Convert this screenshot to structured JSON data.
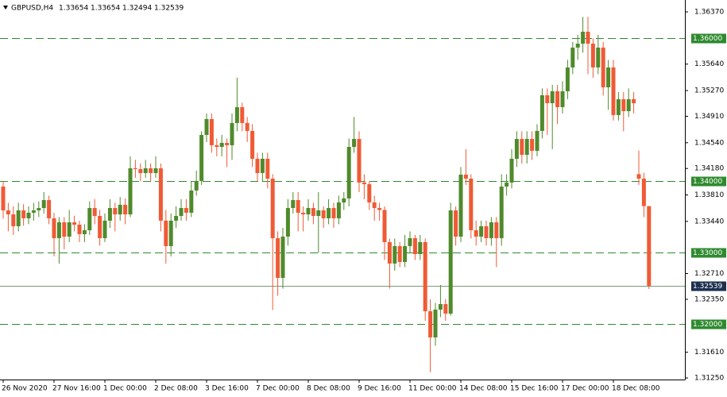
{
  "chart_data": {
    "type": "candlestick",
    "info": {
      "symbol": "GBPUSD,H4",
      "ohlc": [
        1.33654,
        1.33654,
        1.32494,
        1.32539
      ]
    },
    "categories": [
      "26 Nov 2020",
      null,
      null,
      null,
      null,
      null,
      null,
      null,
      null,
      null,
      "27 Nov 16:00",
      null,
      null,
      null,
      null,
      null,
      null,
      null,
      null,
      null,
      "1 Dec 00:00",
      null,
      null,
      null,
      null,
      null,
      null,
      null,
      null,
      null,
      "2 Dec 08:00",
      null,
      null,
      null,
      null,
      null,
      null,
      null,
      null,
      null,
      "3 Dec 16:00",
      null,
      null,
      null,
      null,
      null,
      null,
      null,
      null,
      null,
      "7 Dec 00:00",
      null,
      null,
      null,
      null,
      null,
      null,
      null,
      null,
      null,
      "8 Dec 08:00",
      null,
      null,
      null,
      null,
      null,
      null,
      null,
      null,
      null,
      "9 Dec 16:00",
      null,
      null,
      null,
      null,
      null,
      null,
      null,
      null,
      null,
      "11 Dec 00:00",
      null,
      null,
      null,
      null,
      null,
      null,
      null,
      null,
      null,
      "14 Dec 08:00",
      null,
      null,
      null,
      null,
      null,
      null,
      null,
      null,
      null,
      "15 Dec 16:00",
      null,
      null,
      null,
      null,
      null,
      null,
      null,
      null,
      null,
      "17 Dec 00:00",
      null,
      null,
      null,
      null,
      null,
      null,
      null,
      null,
      null,
      "18 Dec 08:00",
      null,
      null,
      null,
      null,
      null,
      null,
      null
    ],
    "open": [
      1.33927,
      1.33594,
      1.33538,
      1.33372,
      1.33594,
      1.33483,
      1.33561,
      1.33594,
      1.33627,
      1.33738,
      1.33483,
      1.33205,
      1.33427,
      1.33227,
      1.33427,
      1.33394,
      1.33261,
      1.33316,
      1.33627,
      1.33516,
      1.33205,
      1.3345,
      1.33627,
      1.33538,
      1.33672,
      1.33538,
      1.34183,
      1.34171,
      1.34116,
      1.34183,
      1.34116,
      1.34183,
      1.3345,
      1.33094,
      1.3345,
      1.33516,
      1.33627,
      1.33561,
      1.33872,
      1.34005,
      1.34649,
      1.34871,
      1.34505,
      1.34482,
      1.34538,
      1.34505,
      1.34816,
      1.35038,
      1.34816,
      1.34705,
      1.34316,
      1.34116,
      1.34316,
      1.34038,
      1.33205,
      1.3265,
      1.33227,
      1.33627,
      1.33738,
      1.33561,
      1.33538,
      1.33627,
      1.33516,
      1.33594,
      1.33483,
      1.33627,
      1.33483,
      1.33705,
      1.33761,
      1.34482,
      1.34593,
      1.33983,
      1.3396,
      1.33705,
      1.33627,
      1.336,
      1.3315,
      1.3285,
      1.33094,
      1.32872,
      1.33094,
      1.33205,
      1.32983,
      1.3315,
      1.32183,
      1.31817,
      1.32206,
      1.32283,
      1.3215,
      1.33594,
      1.33227,
      1.34094,
      1.34038,
      1.33316,
      1.33227,
      1.33372,
      1.33205,
      1.33427,
      1.33205,
      1.33927,
      1.33983,
      1.34316,
      1.34593,
      1.34371,
      1.34593,
      1.34427,
      1.34705,
      1.35204,
      1.35093,
      1.3526,
      1.35038,
      1.3526,
      1.35593,
      1.35871,
      1.35926,
      1.36093,
      1.35926,
      1.35593,
      1.35871,
      1.35315,
      1.35593,
      1.34927,
      1.35149,
      1.34982,
      1.35149,
      1.341,
      1.34038,
      1.33654
    ],
    "high": [
      1.34,
      1.337,
      1.3365,
      1.337,
      1.3368,
      1.3365,
      1.337,
      1.3372,
      1.3385,
      1.338,
      1.3356,
      1.335,
      1.335,
      1.336,
      1.3352,
      1.3345,
      1.334,
      1.3372,
      1.3375,
      1.336,
      1.3355,
      1.3375,
      1.337,
      1.3378,
      1.3376,
      1.3435,
      1.343,
      1.3425,
      1.343,
      1.3425,
      1.3435,
      1.3425,
      1.336,
      1.3355,
      1.3365,
      1.3375,
      1.3375,
      1.34,
      1.3415,
      1.347,
      1.3495,
      1.3495,
      1.346,
      1.3465,
      1.346,
      1.3495,
      1.3545,
      1.351,
      1.349,
      1.348,
      1.344,
      1.344,
      1.344,
      1.341,
      1.333,
      1.3335,
      1.3375,
      1.3385,
      1.3385,
      1.3365,
      1.3375,
      1.337,
      1.3385,
      1.3365,
      1.3375,
      1.337,
      1.338,
      1.3385,
      1.346,
      1.349,
      1.347,
      1.341,
      1.34,
      1.338,
      1.337,
      1.3365,
      1.332,
      1.332,
      1.3315,
      1.3325,
      1.333,
      1.3325,
      1.3325,
      1.332,
      1.3235,
      1.323,
      1.3255,
      1.3235,
      1.337,
      1.3365,
      1.342,
      1.3445,
      1.341,
      1.3345,
      1.3345,
      1.3345,
      1.335,
      1.335,
      1.341,
      1.341,
      1.3445,
      1.347,
      1.347,
      1.347,
      1.347,
      1.348,
      1.353,
      1.353,
      1.3535,
      1.3535,
      1.354,
      1.357,
      1.3595,
      1.3605,
      1.363,
      1.363,
      1.36,
      1.3605,
      1.3595,
      1.357,
      1.357,
      1.3525,
      1.3525,
      1.353,
      1.3525,
      1.3443,
      1.3412,
      1.33654
    ],
    "low": [
      1.3348,
      1.333,
      1.3325,
      1.333,
      1.3338,
      1.334,
      1.3345,
      1.335,
      1.3355,
      1.334,
      1.3295,
      1.3285,
      1.3305,
      1.3315,
      1.333,
      1.3315,
      1.3315,
      1.3325,
      1.334,
      1.331,
      1.3315,
      1.3335,
      1.333,
      1.3345,
      1.334,
      1.335,
      1.3405,
      1.34,
      1.3405,
      1.34,
      1.3405,
      1.333,
      1.3285,
      1.3295,
      1.3335,
      1.3345,
      1.3345,
      1.335,
      1.338,
      1.3395,
      1.3455,
      1.344,
      1.3435,
      1.3435,
      1.342,
      1.343,
      1.347,
      1.347,
      1.3455,
      1.342,
      1.34,
      1.34,
      1.339,
      1.322,
      1.324,
      1.325,
      1.331,
      1.3355,
      1.333,
      1.333,
      1.3345,
      1.334,
      1.33,
      1.3335,
      1.334,
      1.3335,
      1.334,
      1.336,
      1.3365,
      1.344,
      1.3385,
      1.3375,
      1.336,
      1.3345,
      1.3345,
      1.329,
      1.325,
      1.3275,
      1.328,
      1.328,
      1.33,
      1.329,
      1.329,
      1.3205,
      1.3133,
      1.317,
      1.321,
      1.3205,
      1.3212,
      1.331,
      1.3315,
      1.3395,
      1.332,
      1.331,
      1.3315,
      1.331,
      1.331,
      1.328,
      1.331,
      1.338,
      1.339,
      1.342,
      1.3425,
      1.3425,
      1.343,
      1.3435,
      1.346,
      1.3465,
      1.3445,
      1.348,
      1.3495,
      1.3515,
      1.355,
      1.357,
      1.358,
      1.355,
      1.3545,
      1.355,
      1.352,
      1.35,
      1.3485,
      1.3485,
      1.347,
      1.349,
      1.3495,
      1.3395,
      1.335,
      1.32494
    ],
    "close": [
      1.33594,
      1.33538,
      1.33372,
      1.33594,
      1.33483,
      1.33561,
      1.33594,
      1.33627,
      1.33738,
      1.33483,
      1.33205,
      1.33427,
      1.33227,
      1.33427,
      1.33394,
      1.33261,
      1.33316,
      1.33627,
      1.33516,
      1.33205,
      1.3345,
      1.33627,
      1.33538,
      1.33672,
      1.33538,
      1.34183,
      1.34171,
      1.34116,
      1.34183,
      1.34116,
      1.34183,
      1.3345,
      1.33094,
      1.3345,
      1.33516,
      1.33627,
      1.33561,
      1.33872,
      1.34005,
      1.34649,
      1.34871,
      1.34505,
      1.34482,
      1.34538,
      1.34505,
      1.34816,
      1.35038,
      1.34816,
      1.34705,
      1.34316,
      1.34116,
      1.34316,
      1.34038,
      1.33205,
      1.3265,
      1.33227,
      1.33627,
      1.33738,
      1.33561,
      1.33538,
      1.33627,
      1.33516,
      1.33594,
      1.33483,
      1.33627,
      1.33483,
      1.33705,
      1.33761,
      1.34482,
      1.34593,
      1.33983,
      1.3396,
      1.33705,
      1.33627,
      1.336,
      1.3315,
      1.3285,
      1.33094,
      1.32872,
      1.33094,
      1.33205,
      1.32983,
      1.3315,
      1.32183,
      1.31817,
      1.32206,
      1.32283,
      1.3215,
      1.33594,
      1.33227,
      1.34094,
      1.34038,
      1.33316,
      1.33227,
      1.33372,
      1.33205,
      1.33427,
      1.33205,
      1.33927,
      1.33983,
      1.34316,
      1.34593,
      1.34371,
      1.34593,
      1.34427,
      1.34705,
      1.35204,
      1.35093,
      1.3526,
      1.35038,
      1.3526,
      1.35593,
      1.35871,
      1.35926,
      1.36093,
      1.35926,
      1.35593,
      1.35871,
      1.35315,
      1.35593,
      1.34927,
      1.35149,
      1.34982,
      1.35149,
      1.35093,
      1.34038,
      1.33654,
      1.32539
    ],
    "up_color": "#4f8a2b",
    "down_color": "#ef5a35",
    "ylim": [
      1.3125,
      1.3637
    ],
    "yticks": [
      {
        "value": 1.3637,
        "label": "1.36370"
      },
      {
        "value": 1.3564,
        "label": "1.35640"
      },
      {
        "value": 1.3527,
        "label": "1.35270"
      },
      {
        "value": 1.3491,
        "label": "1.34910"
      },
      {
        "value": 1.3454,
        "label": "1.34540"
      },
      {
        "value": 1.3418,
        "label": "1.34180"
      },
      {
        "value": 1.3381,
        "label": "1.33810"
      },
      {
        "value": 1.3344,
        "label": "1.33440"
      },
      {
        "value": 1.3271,
        "label": "1.32710"
      },
      {
        "value": 1.3235,
        "label": "1.32350"
      },
      {
        "value": 1.3161,
        "label": "1.31610"
      },
      {
        "value": 1.3125,
        "label": "1.31250"
      }
    ],
    "levels": [
      {
        "value": 1.36,
        "label": "1.36000"
      },
      {
        "value": 1.34,
        "label": "1.34000"
      },
      {
        "value": 1.33,
        "label": "1.33000"
      },
      {
        "value": 1.32,
        "label": "1.32000"
      }
    ],
    "level_color": "#2f8a2f",
    "current_price": {
      "value": 1.32539,
      "label": "1.32539"
    }
  }
}
